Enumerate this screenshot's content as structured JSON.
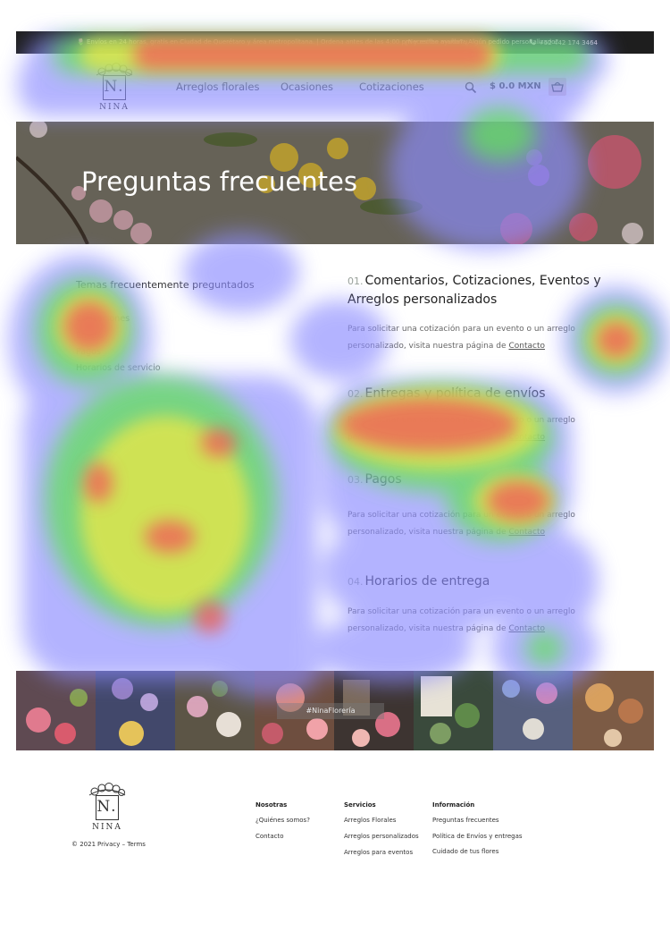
{
  "topbar": {
    "message": "🌷 Envíos en 24 horas, gratis en Ciudad de Querétaro y área metropolitana. | Ordena antes de las 4:00 pm y recibe mañana.",
    "help": "¿Necesitas ayuda? ¿Algún pedido personalizado?",
    "phone": "+52 442 174 3464"
  },
  "brand": {
    "letter": "N.",
    "name": "NINA"
  },
  "nav": {
    "items": [
      "Arreglos florales",
      "Ocasiones",
      "Cotizaciones"
    ]
  },
  "cart": {
    "total": "$ 0.0 MXN"
  },
  "hero": {
    "title": "Preguntas frecuentes"
  },
  "topics": {
    "title": "Temas frecuentemente preguntados",
    "items": [
      "Cotizaciones",
      "Envíos",
      "Pagos",
      "Horarios de servicio"
    ]
  },
  "faq": [
    {
      "num": "01.",
      "title": "Comentarios, Cotizaciones, Eventos y Arreglos personalizados",
      "text": "Para solicitar una cotización para un evento o un arreglo personalizado, visita nuestra página de",
      "link": "Contacto"
    },
    {
      "num": "02.",
      "title": "Entregas y política de envíos",
      "text": "Para solicitar una cotización para un evento o un arreglo personalizado, visita nuestra página de",
      "link": "Contacto"
    },
    {
      "num": "03.",
      "title": "Pagos",
      "text": "Para solicitar una cotización para un evento o un arreglo personalizado, visita nuestra página de",
      "link": "Contacto"
    },
    {
      "num": "04.",
      "title": "Horarios de entrega",
      "text": "Para solicitar una cotización para un evento o un arreglo personalizado, visita nuestra página de",
      "link": "Contacto"
    }
  ],
  "gallery": {
    "tag": "#NinaFlorería"
  },
  "footer": {
    "copyright": "© 2021",
    "privacy": "Privacy – Terms",
    "columns": [
      {
        "heading": "Nosotras",
        "items": [
          "¿Quiénes somos?",
          "Contacto"
        ]
      },
      {
        "heading": "Servicios",
        "items": [
          "Arreglos Florales",
          "Arreglos personalizados",
          "Arreglos para eventos"
        ]
      },
      {
        "heading": "Información",
        "items": [
          "Preguntas frecuentes",
          "Política de Envíos y entregas",
          "Cuidado de tus flores"
        ]
      }
    ]
  },
  "colors": {
    "accent": "#ead6d6",
    "topbar": "#1e1e1e",
    "heat_blue": "#8c8cff",
    "heat_green": "#62e05a",
    "heat_yellow": "#e6e64a",
    "heat_red": "#f25858"
  }
}
